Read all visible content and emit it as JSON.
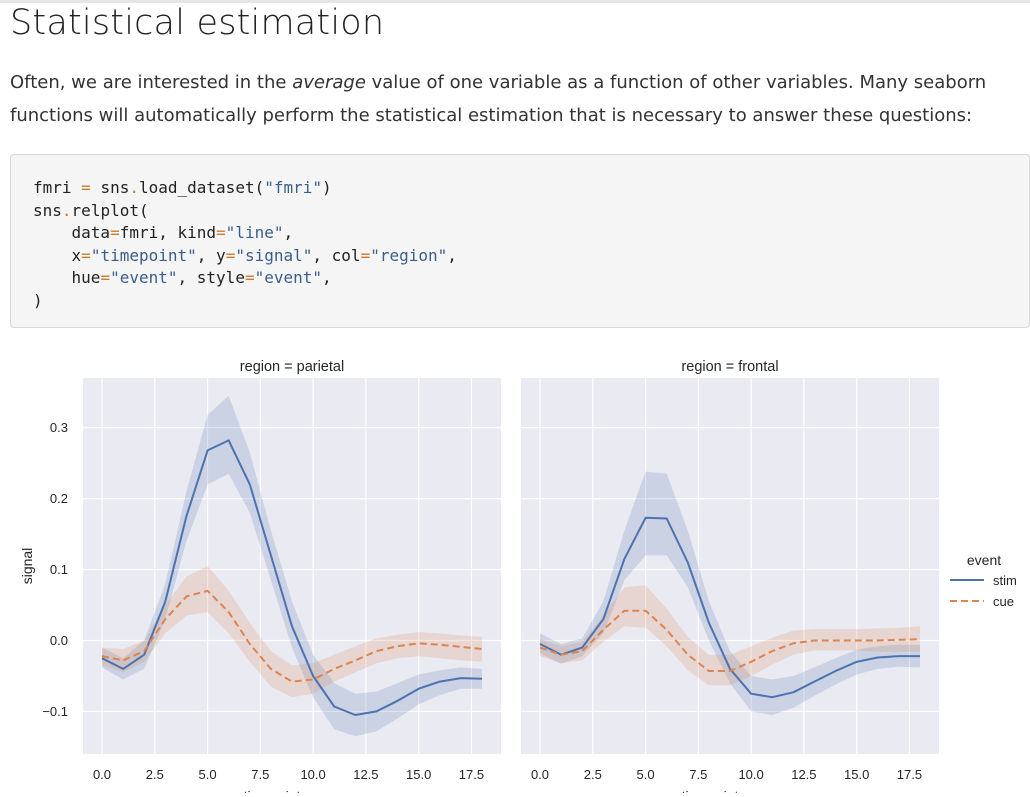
{
  "page": {
    "title": "Statistical estimation",
    "intro_before": "Often, we are interested in the ",
    "intro_emphasis": "average",
    "intro_after": " value of one variable as a function of other variables. Many seaborn functions will automatically perform the statistical estimation that is necessary to answer these questions:"
  },
  "code": {
    "lines": [
      [
        [
          "fmri "
        ],
        [
          "=",
          "op"
        ],
        [
          " sns"
        ],
        [
          ".",
          "op"
        ],
        [
          "load_dataset("
        ],
        [
          "\"fmri\"",
          "str"
        ],
        [
          ")"
        ]
      ],
      [
        [
          "sns"
        ],
        [
          ".",
          "op"
        ],
        [
          "relplot("
        ]
      ],
      [
        [
          "    data"
        ],
        [
          "=",
          "op"
        ],
        [
          "fmri, kind"
        ],
        [
          "=",
          "op"
        ],
        [
          "\"line\"",
          "str"
        ],
        [
          ","
        ]
      ],
      [
        [
          "    x"
        ],
        [
          "=",
          "op"
        ],
        [
          "\"timepoint\"",
          "str"
        ],
        [
          ", y"
        ],
        [
          "=",
          "op"
        ],
        [
          "\"signal\"",
          "str"
        ],
        [
          ", col"
        ],
        [
          "=",
          "op"
        ],
        [
          "\"region\"",
          "str"
        ],
        [
          ","
        ]
      ],
      [
        [
          "    hue"
        ],
        [
          "=",
          "op"
        ],
        [
          "\"event\"",
          "str"
        ],
        [
          ", style"
        ],
        [
          "=",
          "op"
        ],
        [
          "\"event\"",
          "str"
        ],
        [
          ","
        ]
      ],
      [
        [
          ")"
        ]
      ]
    ]
  },
  "colors": {
    "stim": "#4c72b0",
    "cue": "#dd8452",
    "panel_bg": "#eaeaf2",
    "grid": "#ffffff"
  },
  "chart_data": [
    {
      "type": "line",
      "title": "region = parietal",
      "xlabel": "timepoint",
      "ylabel": "signal",
      "xlim": [
        -0.9,
        18.9
      ],
      "ylim": [
        -0.16,
        0.37
      ],
      "xticks": [
        "0.0",
        "2.5",
        "5.0",
        "7.5",
        "10.0",
        "12.5",
        "15.0",
        "17.5"
      ],
      "xtick_values": [
        0,
        2.5,
        5,
        7.5,
        10,
        12.5,
        15,
        17.5
      ],
      "yticks": [
        "0.3",
        "0.2",
        "0.1",
        "0.0",
        "−0.1"
      ],
      "ytick_values": [
        0.3,
        0.2,
        0.1,
        0.0,
        -0.1
      ],
      "x": [
        0,
        1,
        2,
        3,
        4,
        5,
        6,
        7,
        8,
        9,
        10,
        11,
        12,
        13,
        14,
        15,
        16,
        17,
        18
      ],
      "series": [
        {
          "name": "stim",
          "dashed": false,
          "values": [
            -0.025,
            -0.04,
            -0.02,
            0.055,
            0.175,
            0.268,
            0.282,
            0.22,
            0.12,
            0.02,
            -0.05,
            -0.093,
            -0.105,
            -0.1,
            -0.085,
            -0.068,
            -0.058,
            -0.053,
            -0.054
          ],
          "lower": [
            -0.038,
            -0.055,
            -0.04,
            0.03,
            0.14,
            0.22,
            0.235,
            0.18,
            0.085,
            -0.01,
            -0.08,
            -0.125,
            -0.135,
            -0.128,
            -0.11,
            -0.09,
            -0.077,
            -0.068,
            -0.068
          ],
          "upper": [
            -0.01,
            -0.025,
            0.0,
            0.08,
            0.21,
            0.318,
            0.345,
            0.265,
            0.155,
            0.055,
            -0.02,
            -0.06,
            -0.075,
            -0.072,
            -0.06,
            -0.048,
            -0.042,
            -0.038,
            -0.04
          ]
        },
        {
          "name": "cue",
          "dashed": true,
          "values": [
            -0.022,
            -0.028,
            -0.015,
            0.03,
            0.062,
            0.07,
            0.04,
            -0.005,
            -0.04,
            -0.058,
            -0.055,
            -0.04,
            -0.028,
            -0.015,
            -0.008,
            -0.004,
            -0.006,
            -0.009,
            -0.012
          ],
          "lower": [
            -0.035,
            -0.045,
            -0.03,
            0.01,
            0.035,
            0.04,
            0.01,
            -0.03,
            -0.065,
            -0.08,
            -0.075,
            -0.058,
            -0.045,
            -0.032,
            -0.025,
            -0.022,
            -0.025,
            -0.028,
            -0.03
          ],
          "upper": [
            -0.01,
            -0.012,
            0.0,
            0.05,
            0.09,
            0.105,
            0.07,
            0.025,
            -0.015,
            -0.035,
            -0.032,
            -0.02,
            -0.008,
            0.003,
            0.008,
            0.012,
            0.01,
            0.007,
            0.005
          ]
        }
      ]
    },
    {
      "type": "line",
      "title": "region = frontal",
      "xlabel": "timepoint",
      "ylabel": "",
      "xlim": [
        -0.9,
        18.9
      ],
      "ylim": [
        -0.16,
        0.37
      ],
      "xticks": [
        "0.0",
        "2.5",
        "5.0",
        "7.5",
        "10.0",
        "12.5",
        "15.0",
        "17.5"
      ],
      "xtick_values": [
        0,
        2.5,
        5,
        7.5,
        10,
        12.5,
        15,
        17.5
      ],
      "yticks": [],
      "ytick_values": [
        0.3,
        0.2,
        0.1,
        0.0,
        -0.1
      ],
      "x": [
        0,
        1,
        2,
        3,
        4,
        5,
        6,
        7,
        8,
        9,
        10,
        11,
        12,
        13,
        14,
        15,
        16,
        17,
        18
      ],
      "series": [
        {
          "name": "stim",
          "dashed": false,
          "values": [
            -0.005,
            -0.02,
            -0.01,
            0.03,
            0.115,
            0.173,
            0.172,
            0.11,
            0.025,
            -0.04,
            -0.075,
            -0.08,
            -0.073,
            -0.058,
            -0.043,
            -0.03,
            -0.024,
            -0.022,
            -0.022
          ],
          "lower": [
            -0.018,
            -0.033,
            -0.022,
            0.01,
            0.085,
            0.12,
            0.12,
            0.075,
            0.0,
            -0.06,
            -0.1,
            -0.105,
            -0.095,
            -0.078,
            -0.062,
            -0.048,
            -0.04,
            -0.037,
            -0.038
          ],
          "upper": [
            0.01,
            -0.005,
            0.003,
            0.055,
            0.155,
            0.238,
            0.235,
            0.155,
            0.055,
            -0.015,
            -0.05,
            -0.055,
            -0.05,
            -0.038,
            -0.025,
            -0.013,
            -0.008,
            -0.006,
            -0.006
          ]
        },
        {
          "name": "cue",
          "dashed": true,
          "values": [
            -0.01,
            -0.02,
            -0.015,
            0.015,
            0.042,
            0.042,
            0.015,
            -0.02,
            -0.043,
            -0.043,
            -0.03,
            -0.015,
            -0.004,
            0.0,
            0.0,
            0.0,
            0.0,
            0.001,
            0.002
          ],
          "lower": [
            -0.022,
            -0.032,
            -0.028,
            -0.002,
            0.02,
            0.018,
            -0.008,
            -0.042,
            -0.063,
            -0.063,
            -0.05,
            -0.034,
            -0.02,
            -0.014,
            -0.014,
            -0.014,
            -0.016,
            -0.016,
            -0.016
          ],
          "upper": [
            0.002,
            -0.008,
            -0.002,
            0.035,
            0.075,
            0.078,
            0.045,
            0.005,
            -0.02,
            -0.02,
            -0.008,
            0.004,
            0.014,
            0.016,
            0.016,
            0.016,
            0.017,
            0.018,
            0.02
          ]
        }
      ]
    }
  ],
  "legend": {
    "title": "event",
    "items": [
      "stim",
      "cue"
    ]
  }
}
